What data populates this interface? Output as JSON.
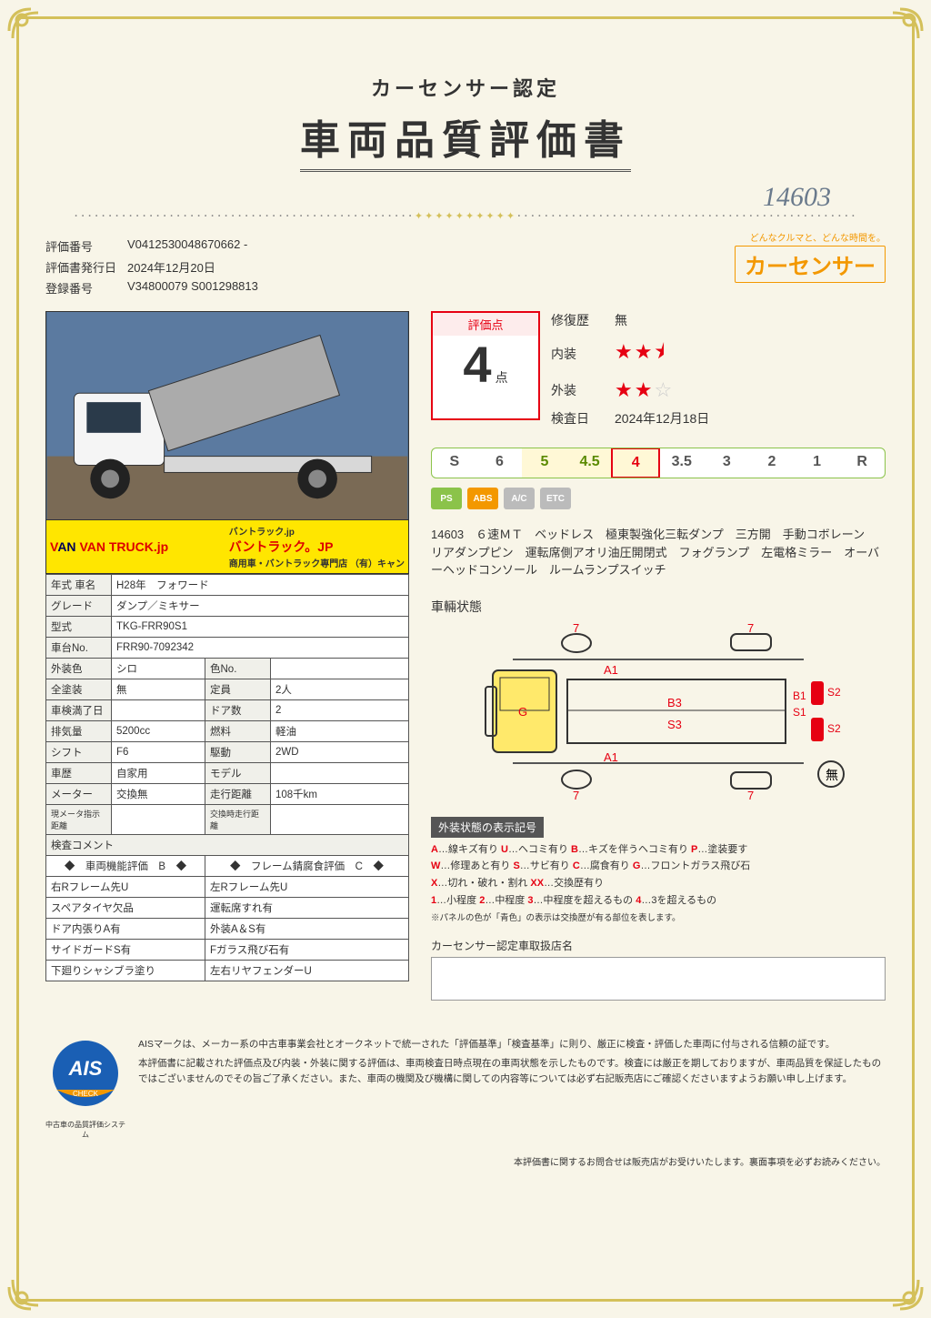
{
  "header": {
    "subtitle": "カーセンサー認定",
    "maintitle": "車両品質評価書",
    "handwritten": "14603",
    "brand_tag": "どんなクルマと、どんな時間を。",
    "brand_name": "カーセンサー"
  },
  "ident": {
    "eval_no_label": "評価番号",
    "eval_no": "V0412530048670662 -",
    "issue_label": "評価書発行日",
    "issue": "2024年12月20日",
    "reg_label": "登録番号",
    "reg": "V34800079 S001298813"
  },
  "banner": {
    "left": "VAN TRUCK.jp",
    "tag": "バントラック.jp",
    "main": "バントラック。JP",
    "sub": "商用車・バントラック専門店 （有）キャン"
  },
  "spec": {
    "year_label": "年式 車名",
    "year": "H28年　フォワード",
    "grade_label": "グレード",
    "grade": "ダンプ／ミキサー",
    "model_label": "型式",
    "model": "TKG-FRR90S1",
    "chassis_label": "車台No.",
    "chassis": "FRR90-7092342",
    "color_label": "外装色",
    "color": "シロ",
    "colorno_label": "色No.",
    "colorno": "",
    "paint_label": "全塗装",
    "paint": "無",
    "cap_label": "定員",
    "cap": "2人",
    "shaken_label": "車検満了日",
    "shaken": "",
    "doors_label": "ドア数",
    "doors": "2",
    "disp_label": "排気量",
    "disp": "5200cc",
    "fuel_label": "燃料",
    "fuel": "軽油",
    "shift_label": "シフト",
    "shift": "F6",
    "drive_label": "駆動",
    "drive": "2WD",
    "hist_label": "車歴",
    "hist": "自家用",
    "modelg_label": "モデル",
    "modelg": "",
    "meter_label": "メーター",
    "meter": "交換無",
    "odo_label": "走行距離",
    "odo": "108千km",
    "now_label": "現メータ指示距離",
    "now": "",
    "odo2_label": "交換時走行距離",
    "odo2": "",
    "comment_label": "検査コメント",
    "func_label": "◆　車両機能評価　B　◆",
    "rust_label": "◆　フレーム錆腐食評価　C　◆",
    "r1a": "右Rフレーム先U",
    "r1b": "左Rフレーム先U",
    "r2a": "スペアタイヤ欠品",
    "r2b": "運転席すれ有",
    "r3a": "ドア内張りA有",
    "r3b": "外装A＆S有",
    "r4a": "サイドガードS有",
    "r4b": "Fガラス飛び石有",
    "r5a": "下廻りシャシブラ塗り",
    "r5b": "左右リヤフェンダーU"
  },
  "score": {
    "box_label": "評価点",
    "value": "4",
    "unit": "点",
    "repair_label": "修復歴",
    "repair": "無",
    "interior_label": "内装",
    "interior_stars": 2.5,
    "exterior_label": "外装",
    "exterior_stars": 2,
    "inspect_label": "検査日",
    "inspect": "2024年12月18日",
    "scale": [
      "S",
      "6",
      "5",
      "4.5",
      "4",
      "3.5",
      "3",
      "2",
      "1",
      "R"
    ],
    "scale_hit": "4",
    "icons": [
      "PS",
      "ABS",
      "A/C",
      "ETC"
    ]
  },
  "desc": {
    "num": "14603",
    "text": "６速ＭＴ　ベッドレス　極東製強化三転ダンプ　三方開　手動コボレーン　リアダンプピン　運転席側アオリ油圧開閉式　フォグランプ　左電格ミラー　オーバーヘッドコンソール　ルームランプスイッチ"
  },
  "cond": {
    "title": "車輛状態",
    "marks": {
      "a1_top": "A1",
      "a1_bot": "A1",
      "g": "G",
      "b3": "B3",
      "s3": "S3",
      "b1": "B1",
      "s1": "S1",
      "s2t": "S2",
      "s2b": "S2",
      "seven": "7",
      "mu": "無"
    }
  },
  "legend": {
    "title": "外装状態の表示記号",
    "line1": "A…線キズ有り U…ヘコミ有り B…キズを伴うヘコミ有り P…塗装要す",
    "line2": "W…修理あと有り S…サビ有り C…腐食有り G…フロントガラス飛び石",
    "line3": "X…切れ・破れ・割れ XX…交換歴有り",
    "line4": "1…小程度 2…中程度 3…中程度を超えるもの 4…3を超えるもの",
    "note": "※パネルの色が「青色」の表示は交換歴が有る部位を表します。"
  },
  "dealer": {
    "label": "カーセンサー認定車取扱店名"
  },
  "ais": {
    "badge_top": "AIS",
    "badge_sub": "Automobile Inspection System",
    "badge_check": "CHECK",
    "caption": "中古車の品質評価システム",
    "p1": "AISマークは、メーカー系の中古車事業会社とオークネットで統一された「評価基準」「検査基準」に則り、厳正に検査・評価した車両に付与される信頼の証です。",
    "p2": "本評価書に記載された評価点及び内装・外装に関する評価は、車両検査日時点現在の車両状態を示したものです。検査には厳正を期しておりますが、車両品質を保証したものではございませんのでその旨ご了承ください。また、車両の機関及び機構に関しての内容等については必ず右記販売店にご確認くださいますようお願い申し上げます。"
  },
  "footer": "本評価書に関するお問合せは販売店がお受けいたします。裏面事項を必ずお読みください。"
}
